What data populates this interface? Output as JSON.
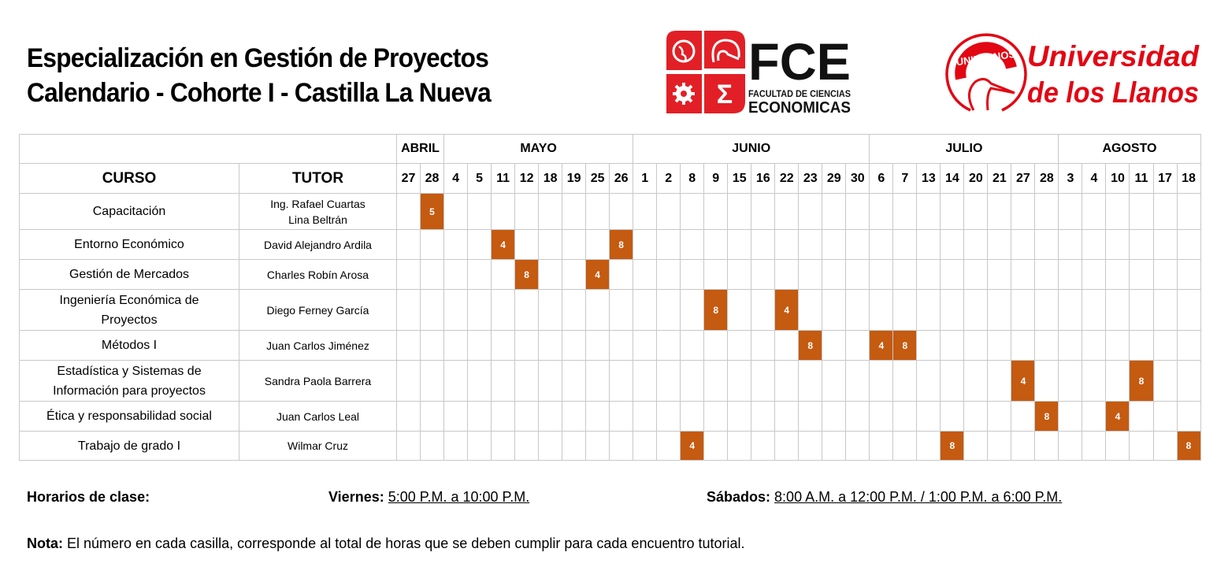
{
  "header": {
    "title_line1": "Especialización en Gestión de Proyectos",
    "title_line2": "Calendario - Cohorte I - Castilla La Nueva"
  },
  "logos": {
    "fce": {
      "acronym": "FCE",
      "line1": "FACULTAD DE CIENCIAS",
      "line2": "ECONOMICAS",
      "color": "#e21f26"
    },
    "unillanos": {
      "ring_text": "UNILLANOS",
      "line1": "Universidad",
      "line2": "de los Llanos",
      "color": "#e30613"
    }
  },
  "table": {
    "col_course": "CURSO",
    "col_tutor": "TUTOR",
    "months": [
      {
        "label": "ABRIL",
        "span": 2
      },
      {
        "label": "MAYO",
        "span": 8
      },
      {
        "label": "JUNIO",
        "span": 10
      },
      {
        "label": "JULIO",
        "span": 8
      },
      {
        "label": "AGOSTO",
        "span": 6
      }
    ],
    "days": [
      "27",
      "28",
      "4",
      "5",
      "11",
      "12",
      "18",
      "19",
      "25",
      "26",
      "1",
      "2",
      "8",
      "9",
      "15",
      "16",
      "22",
      "23",
      "29",
      "30",
      "6",
      "7",
      "13",
      "14",
      "20",
      "21",
      "27",
      "28",
      "3",
      "4",
      "10",
      "11",
      "17",
      "18"
    ],
    "highlight_color": "#c55a11",
    "rows": [
      {
        "course": "Capacitación",
        "tutor": "Ing. Rafael Cuartas\nLina Beltrán",
        "sessions": {
          "1": "5"
        }
      },
      {
        "course": "Entorno  Económico",
        "tutor": "David Alejandro Ardila",
        "sessions": {
          "4": "4",
          "9": "8"
        }
      },
      {
        "course": "Gestión  de Mercados",
        "tutor": "Charles Robín Arosa",
        "sessions": {
          "5": "8",
          "8": "4"
        }
      },
      {
        "course": "Ingeniería  Económica de\nProyectos",
        "tutor": "Diego Ferney García",
        "sessions": {
          "13": "8",
          "16": "4"
        }
      },
      {
        "course": "Métodos  I",
        "tutor": "Juan Carlos Jiménez",
        "sessions": {
          "17": "8",
          "20": "4",
          "21": "8"
        }
      },
      {
        "course": "Estadística y Sistemas de\nInformación  para proyectos",
        "tutor": "Sandra Paola Barrera",
        "sessions": {
          "26": "4",
          "31": "8"
        }
      },
      {
        "course": "Ética y responsabilidad  social",
        "tutor": "Juan Carlos Leal",
        "sessions": {
          "27": "8",
          "30": "4"
        }
      },
      {
        "course": "Trabajo de grado I",
        "tutor": "Wilmar Cruz",
        "sessions": {
          "12": "4",
          "23": "8",
          "33": "8"
        }
      }
    ]
  },
  "footer": {
    "schedule_label": "Horarios de clase:",
    "friday_label": "Viernes:",
    "friday_hours": "5:00 P.M. a 10:00 P.M.",
    "saturday_label": "Sábados:",
    "saturday_hours": "8:00 A.M. a 12:00 P.M. / 1:00 P.M. a 6:00 P.M.",
    "note_label": "Nota:",
    "note_text": " El número en cada casilla, corresponde al total de horas que se deben cumplir para cada encuentro tutorial."
  }
}
